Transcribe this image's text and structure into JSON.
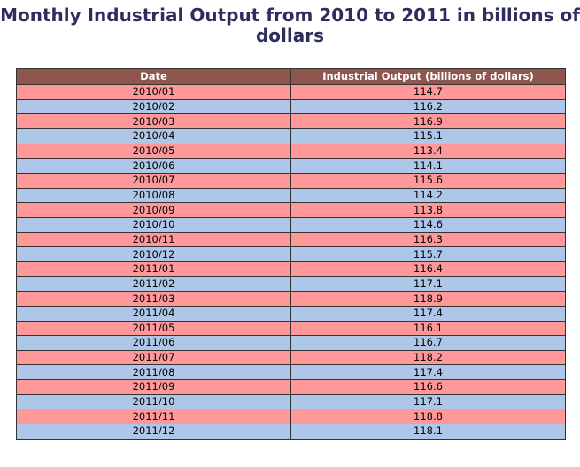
{
  "colors": {
    "title": "#2e2e5e",
    "header_bg": "#8e564c",
    "header_text": "#ffffff",
    "row_odd": "#ff9999",
    "row_even": "#aec7e8",
    "border": "#333333"
  },
  "chart_data": {
    "type": "table",
    "title": "Monthly Industrial Output from 2010 to 2011 in billions of dollars",
    "columns": [
      "Date",
      "Industrial Output (billions of dollars)"
    ],
    "rows": [
      [
        "2010/01",
        "114.7"
      ],
      [
        "2010/02",
        "116.2"
      ],
      [
        "2010/03",
        "116.9"
      ],
      [
        "2010/04",
        "115.1"
      ],
      [
        "2010/05",
        "113.4"
      ],
      [
        "2010/06",
        "114.1"
      ],
      [
        "2010/07",
        "115.6"
      ],
      [
        "2010/08",
        "114.2"
      ],
      [
        "2010/09",
        "113.8"
      ],
      [
        "2010/10",
        "114.6"
      ],
      [
        "2010/11",
        "116.3"
      ],
      [
        "2010/12",
        "115.7"
      ],
      [
        "2011/01",
        "116.4"
      ],
      [
        "2011/02",
        "117.1"
      ],
      [
        "2011/03",
        "118.9"
      ],
      [
        "2011/04",
        "117.4"
      ],
      [
        "2011/05",
        "116.1"
      ],
      [
        "2011/06",
        "116.7"
      ],
      [
        "2011/07",
        "118.2"
      ],
      [
        "2011/08",
        "117.4"
      ],
      [
        "2011/09",
        "116.6"
      ],
      [
        "2011/10",
        "117.1"
      ],
      [
        "2011/11",
        "118.8"
      ],
      [
        "2011/12",
        "118.1"
      ]
    ]
  }
}
